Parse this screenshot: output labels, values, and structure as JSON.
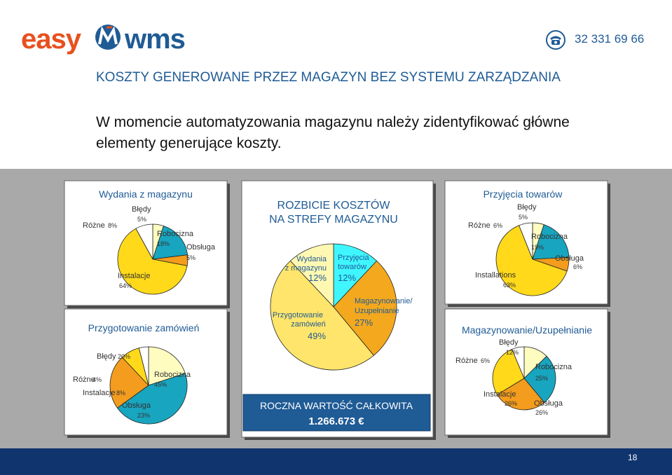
{
  "header": {
    "logo_left": "easy",
    "logo_right": "wms",
    "phone": "32 331 69 66",
    "phone_icon": "phone-icon",
    "brand_orange": "#e8501e",
    "brand_blue": "#1f5b95"
  },
  "heading": "KOSZTY GENEROWANE PRZEZ MAGAZYN BEZ SYSTEMU ZARZĄDZANIA",
  "intro": "W momencie automatyzowania magazynu należy zidentyfikować główne elementy generujące koszty.",
  "chart_data": [
    {
      "type": "pie",
      "title": "Wydania z magazynu",
      "categories": [
        "Błędy",
        "Robocizna",
        "Obsługa",
        "Instalacje",
        "Różne"
      ],
      "values": [
        5,
        18,
        5,
        64,
        8
      ],
      "labels": [
        "5%",
        "18%",
        "5%",
        "64%",
        "8%"
      ],
      "colors": [
        "#fffcc0",
        "#18a5bf",
        "#f39c1d",
        "#ffd91a",
        "#ffffff"
      ]
    },
    {
      "type": "pie",
      "title": "Przygotowanie zamówień",
      "categories": [
        "Błędy",
        "Robocizna",
        "Obsługa",
        "Instalacje",
        "Różne"
      ],
      "values": [
        20,
        45,
        23,
        8,
        4
      ],
      "labels": [
        "20%",
        "45%",
        "23%",
        "8%",
        "4%"
      ],
      "colors": [
        "#fffcc0",
        "#18a5bf",
        "#f39c1d",
        "#ffd91a",
        "#ffffff"
      ]
    },
    {
      "type": "pie",
      "title": "ROZBICIE KOSZTÓW NA STREFY MAGAZYNU",
      "categories": [
        "Przyjęcia towarów",
        "Magazynowanie/ Uzupełnianie",
        "Przygotowanie zamówień",
        "Wydania z magazynu"
      ],
      "values": [
        12,
        27,
        49,
        12
      ],
      "labels": [
        "12%",
        "27%",
        "49%",
        "12%"
      ],
      "colors": [
        "#3ff6ff",
        "#f3a81d",
        "#ffe56b",
        "#fff8b2"
      ]
    },
    {
      "type": "pie",
      "title": "Przyjęcia towarów",
      "categories": [
        "Błędy",
        "Robocizna",
        "Obsługa",
        "Installations",
        "Różne"
      ],
      "values": [
        5,
        19,
        6,
        63,
        6
      ],
      "labels": [
        "5%",
        "19%",
        "6%",
        "63%",
        "6%"
      ],
      "colors": [
        "#fffcc0",
        "#18a5bf",
        "#f39c1d",
        "#ffd91a",
        "#ffffff"
      ]
    },
    {
      "type": "pie",
      "title": "Magazynowanie/Uzupełnianie",
      "categories": [
        "Błędy",
        "Robocizna",
        "Obsługa",
        "Instalacje",
        "Różne"
      ],
      "values": [
        12,
        25,
        26,
        26,
        6
      ],
      "labels": [
        "12%",
        "25%",
        "26%",
        "26%",
        "6%"
      ],
      "colors": [
        "#fffcc0",
        "#18a5bf",
        "#f39c1d",
        "#ffd91a",
        "#ffffff"
      ]
    }
  ],
  "total_box": {
    "label": "ROCZNA WARTOŚĆ CAŁKOWITA",
    "value": "1.266.673 €"
  },
  "page_number": "18"
}
